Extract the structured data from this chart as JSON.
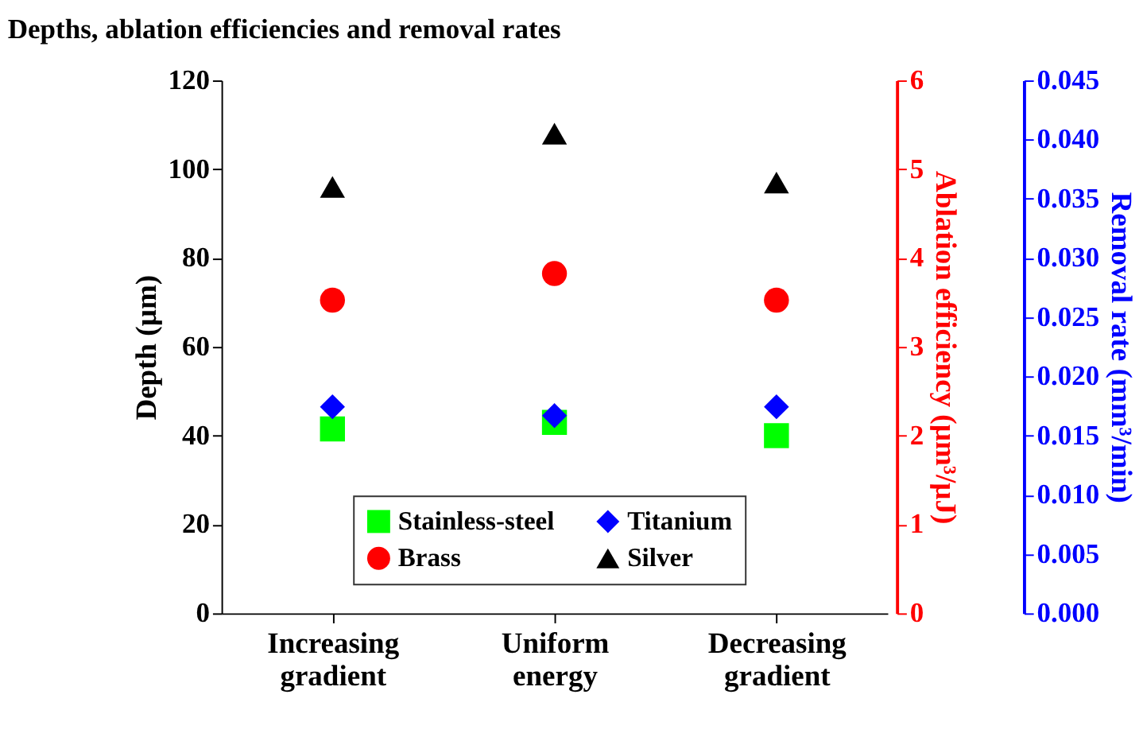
{
  "chart_data": {
    "type": "scatter",
    "title": "Depths, ablation efficiencies and removal rates",
    "ylabel": "Depth (µm)",
    "y2label": "Ablation efficiency (µm³/µJ)",
    "y3label": "Removal rate (mm³/min)",
    "categories": [
      "Increasing gradient",
      "Uniform energy",
      "Decreasing gradient"
    ],
    "series": [
      {
        "name": "Stainless-steel",
        "color": "#00ff00",
        "marker": "square",
        "values": [
          41.5,
          43,
          40
        ]
      },
      {
        "name": "Brass",
        "color": "#ff0000",
        "marker": "circle",
        "values": [
          70.5,
          76.5,
          70.5
        ]
      },
      {
        "name": "Titanium",
        "color": "#0000ff",
        "marker": "diamond",
        "values": [
          46.5,
          44.5,
          46.5
        ]
      },
      {
        "name": "Silver",
        "color": "#000000",
        "marker": "triangle",
        "values": [
          96,
          108,
          97
        ]
      }
    ],
    "ylim": [
      0,
      120
    ],
    "yticks": [
      0,
      20,
      40,
      60,
      80,
      100,
      120
    ],
    "y2lim": [
      0,
      6
    ],
    "y2ticks": [
      0,
      1,
      2,
      3,
      4,
      5,
      6
    ],
    "y3lim": [
      0,
      0.045
    ],
    "y3ticks": [
      {
        "value": 0,
        "label": "0.000"
      },
      0.005,
      {
        "value": 0.01,
        "label": "0.010"
      },
      0.015,
      {
        "value": 0.02,
        "label": "0.020"
      },
      0.025,
      {
        "value": 0.03,
        "label": "0.030"
      },
      0.035,
      {
        "value": 0.04,
        "label": "0.040"
      },
      0.045
    ],
    "legend": "bottom",
    "grid": false
  }
}
